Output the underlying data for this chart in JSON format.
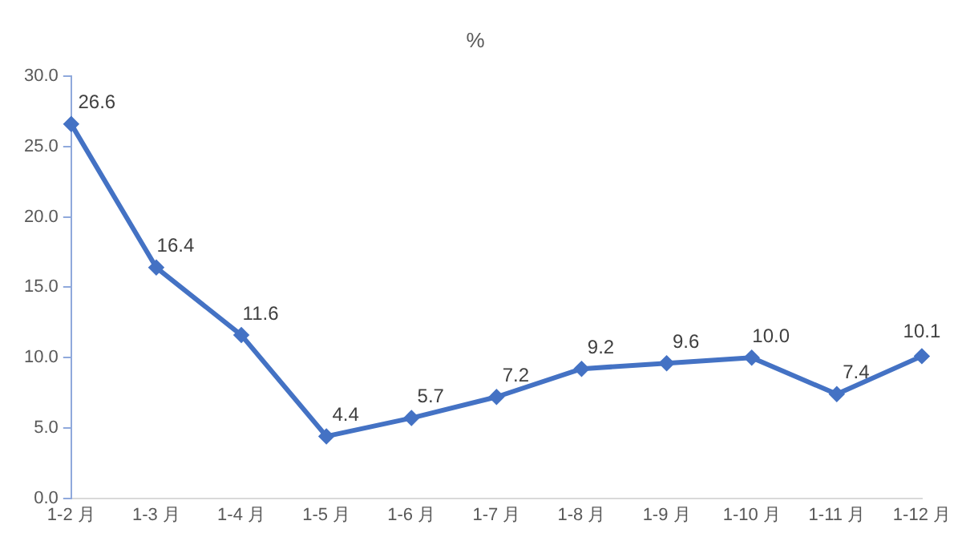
{
  "chart_data": {
    "type": "line",
    "title": "%",
    "categories": [
      "1-2 月",
      "1-3 月",
      "1-4 月",
      "1-5 月",
      "1-6 月",
      "1-7 月",
      "1-8 月",
      "1-9 月",
      "1-10 月",
      "1-11 月",
      "1-12 月"
    ],
    "series": [
      {
        "color": "#4472c4",
        "values": [
          26.6,
          16.4,
          11.6,
          4.4,
          5.7,
          7.2,
          9.2,
          9.6,
          10.0,
          7.4,
          10.1
        ],
        "value_labels": [
          "26.6",
          "16.4",
          "11.6",
          "4.4",
          "5.7",
          "7.2",
          "9.2",
          "9.6",
          "10.0",
          "7.4",
          "10.1"
        ]
      }
    ],
    "ylim": [
      0,
      30
    ],
    "yticks": [
      {
        "value": 0,
        "label": "0.0"
      },
      {
        "value": 5,
        "label": "5.0"
      },
      {
        "value": 10,
        "label": "10.0"
      },
      {
        "value": 15,
        "label": "15.0"
      },
      {
        "value": 20,
        "label": "20.0"
      },
      {
        "value": 25,
        "label": "25.0"
      },
      {
        "value": 30,
        "label": "30.0"
      }
    ],
    "grid": false,
    "legend": false,
    "marker": "diamond",
    "line_style": "solid"
  }
}
